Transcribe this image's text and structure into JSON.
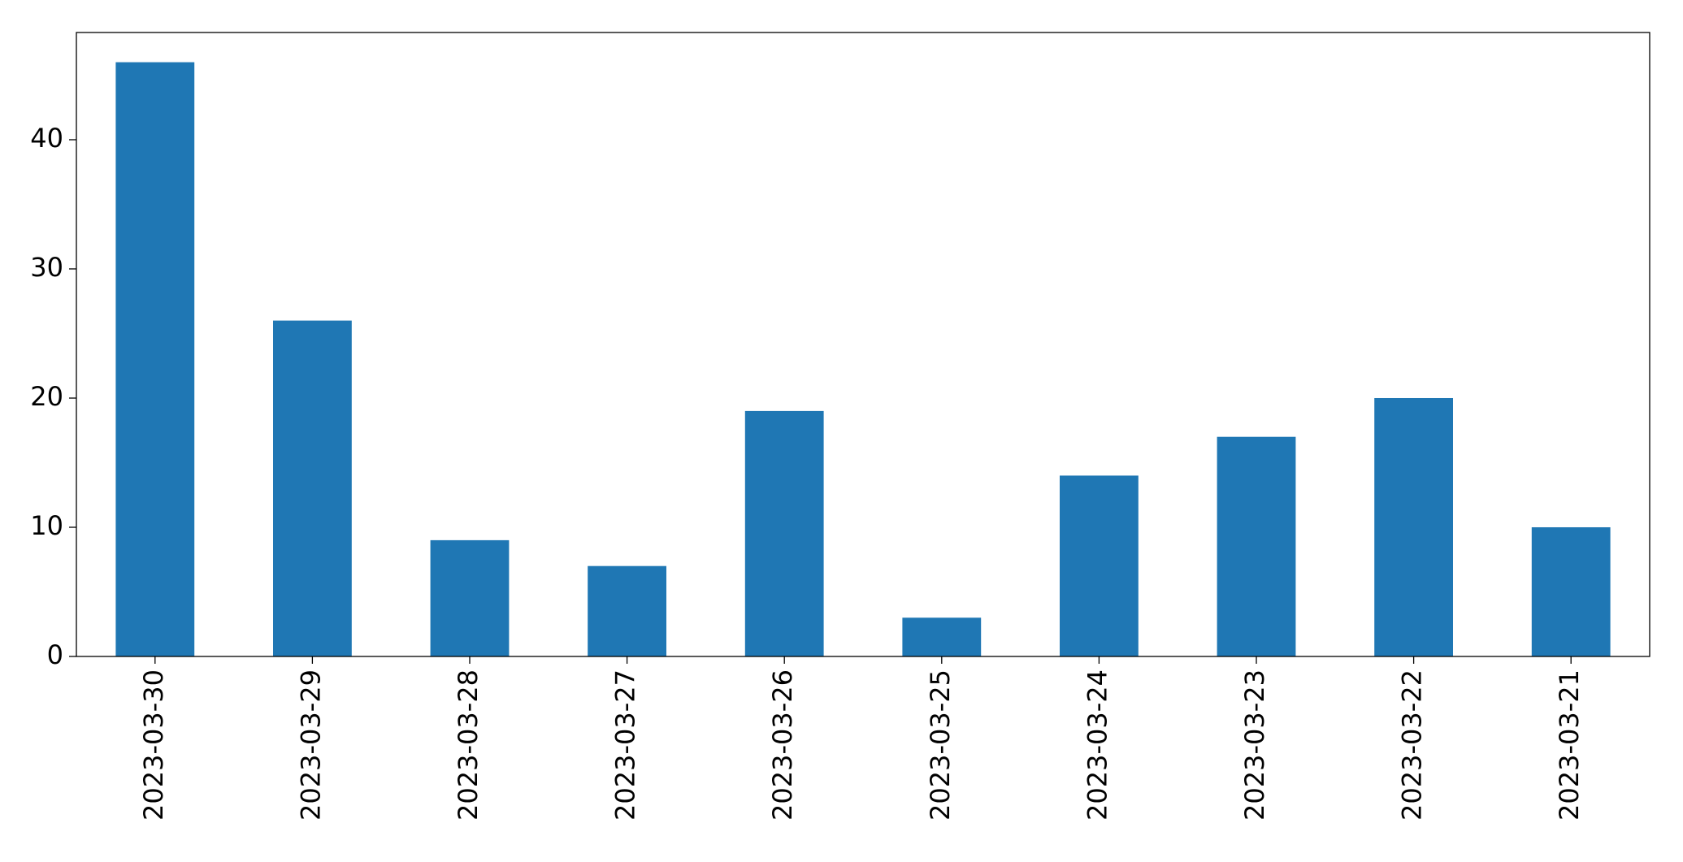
{
  "chart_data": {
    "type": "bar",
    "categories": [
      "2023-03-30",
      "2023-03-29",
      "2023-03-28",
      "2023-03-27",
      "2023-03-26",
      "2023-03-25",
      "2023-03-24",
      "2023-03-23",
      "2023-03-22",
      "2023-03-21"
    ],
    "values": [
      46,
      26,
      9,
      7,
      19,
      3,
      14,
      17,
      20,
      10
    ],
    "color": "#1f77b4",
    "ylim": [
      0,
      48.3
    ],
    "yticks": [
      0,
      10,
      20,
      30,
      40
    ],
    "grid": false
  }
}
